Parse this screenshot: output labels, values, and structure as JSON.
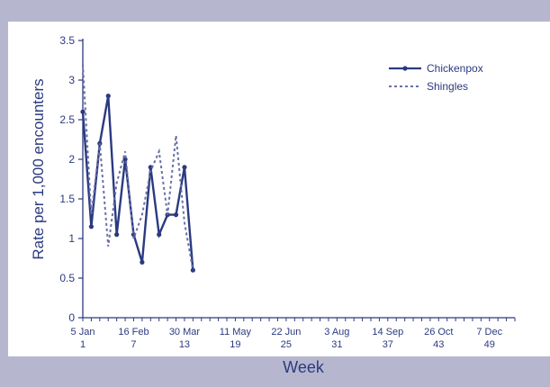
{
  "chart_data": {
    "type": "line",
    "xlabel": "Week",
    "ylabel": "Rate per 1,000 encounters",
    "ylim": [
      0,
      3.5
    ],
    "xlim": [
      1,
      52
    ],
    "yticks": [
      "0",
      "0.5",
      "1",
      "1.5",
      "2",
      "2.5",
      "3",
      "3.5"
    ],
    "x_ticks": [
      {
        "week": 1,
        "date": "5 Jan",
        "num": "1"
      },
      {
        "week": 7,
        "date": "16 Feb",
        "num": "7"
      },
      {
        "week": 13,
        "date": "30 Mar",
        "num": "13"
      },
      {
        "week": 19,
        "date": "11 May",
        "num": "19"
      },
      {
        "week": 25,
        "date": "22 Jun",
        "num": "25"
      },
      {
        "week": 31,
        "date": "3 Aug",
        "num": "31"
      },
      {
        "week": 37,
        "date": "14 Sep",
        "num": "37"
      },
      {
        "week": 43,
        "date": "26 Oct",
        "num": "43"
      },
      {
        "week": 49,
        "date": "7 Dec",
        "num": "49"
      }
    ],
    "grid": false,
    "legend_position": "top-right",
    "series": [
      {
        "name": "Chickenpox",
        "style": "solid",
        "color": "#2b3a80",
        "x": [
          1,
          2,
          3,
          4,
          5,
          6,
          7,
          8,
          9,
          10,
          11,
          12,
          13,
          14
        ],
        "values": [
          2.6,
          1.15,
          2.2,
          2.8,
          1.05,
          2.0,
          1.05,
          0.7,
          1.9,
          1.05,
          1.3,
          1.3,
          1.9,
          0.6
        ]
      },
      {
        "name": "Shingles",
        "style": "dotted",
        "color": "#6a6fa8",
        "x": [
          1,
          2,
          3,
          4,
          5,
          6,
          7,
          8,
          9,
          10,
          11,
          12,
          13,
          14
        ],
        "values": [
          3.2,
          1.3,
          2.2,
          0.9,
          1.7,
          2.1,
          1.0,
          1.3,
          1.85,
          2.1,
          1.3,
          2.3,
          1.2,
          0.6
        ]
      }
    ]
  },
  "colors": {
    "background": "#b6b7cf",
    "plot_area": "#ffffff",
    "axis": "#2b3a80",
    "text": "#2b3a80"
  }
}
